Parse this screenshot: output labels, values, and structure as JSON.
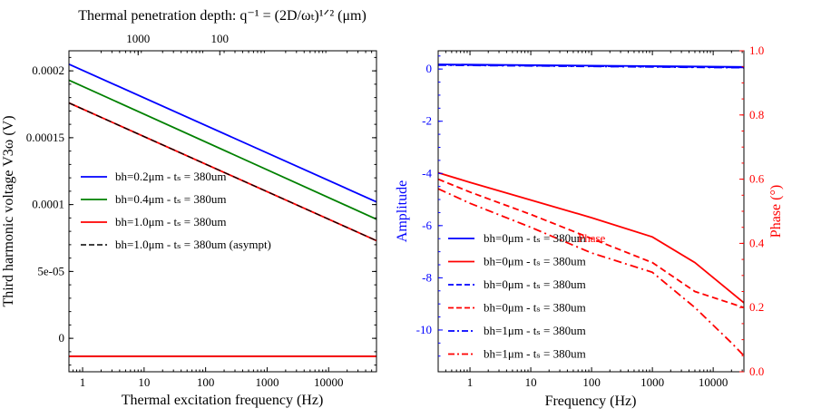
{
  "chart_data": [
    {
      "type": "line",
      "title": "Thermal penetration depth: q⁻¹ = (2D/ωₜ)¹ᐟ² (μm)",
      "xlabel": "Thermal excitation frequency (Hz)",
      "ylabel": "Third harmonic voltage V3ω (V)",
      "xscale": "log",
      "xlim": [
        0.6,
        60000
      ],
      "ylim": [
        -2.5e-05,
        0.000215
      ],
      "xticks": [
        1,
        10,
        100,
        1000,
        10000
      ],
      "xtick_labels": [
        "1",
        "10",
        "100",
        "1000",
        "10000"
      ],
      "yticks": [
        0,
        5e-05,
        0.0001,
        0.00015,
        0.0002
      ],
      "ytick_labels": [
        "0",
        "5e-05",
        "0.0001",
        "0.00015",
        "0.0002"
      ],
      "top_axis_ticks": [
        "1000",
        "100"
      ],
      "top_axis_tick_freqs": [
        8,
        170
      ],
      "legend_position": "center-left",
      "series": [
        {
          "name": "bh=0.2μm - tₛ = 380um",
          "color": "#0000ff",
          "dash": "solid",
          "x": [
            0.6,
            60000
          ],
          "y": [
            0.000205,
            0.000102
          ]
        },
        {
          "name": "bh=0.4μm - tₛ = 380um",
          "color": "#008000",
          "dash": "solid",
          "x": [
            0.6,
            60000
          ],
          "y": [
            0.000193,
            8.9e-05
          ]
        },
        {
          "name": "bh=1.0μm - tₛ = 380um",
          "color": "#ff0000",
          "dash": "solid",
          "x": [
            0.6,
            60000
          ],
          "y": [
            0.000176,
            7.3e-05
          ]
        },
        {
          "name": "bh=1.0μm -  tₛ = 380um (asympt)",
          "color": "#000000",
          "dash": "dashed",
          "x": [
            0.6,
            60000
          ],
          "y": [
            0.000176,
            7.3e-05
          ]
        }
      ],
      "extra_lines": [
        {
          "color": "#000000",
          "x": [
            0.6,
            60000
          ],
          "y": [
            -1.35e-05,
            -1.35e-05
          ]
        },
        {
          "color": "#ff0000",
          "x": [
            0.6,
            60000
          ],
          "y": [
            -1.35e-05,
            -1.35e-05
          ]
        }
      ]
    },
    {
      "type": "line",
      "xlabel": "Frequency (Hz)",
      "ylabel_left": "Amplitude",
      "ylabel_right": "Phase (°)",
      "xscale": "log",
      "xlim": [
        0.3,
        32000
      ],
      "ylim_left": [
        -11.6,
        0.7
      ],
      "ylim_right": [
        0.0,
        1.0
      ],
      "left_color": "#0000ff",
      "right_color": "#ff0000",
      "xticks": [
        1,
        10,
        100,
        1000,
        10000
      ],
      "xtick_labels": [
        "1",
        "10",
        "100",
        "1000",
        "10000"
      ],
      "yticks_left": [
        0,
        -2,
        -4,
        -6,
        -8,
        -10
      ],
      "ytick_labels_left": [
        "0",
        "-2",
        "-4",
        "-6",
        "-8",
        "-10"
      ],
      "yticks_right": [
        0.0,
        0.2,
        0.4,
        0.6,
        0.8,
        1.0
      ],
      "ytick_labels_right": [
        "0.0",
        "0.2",
        "0.4",
        "0.6",
        "0.8",
        "1.0"
      ],
      "legend_position": "lower-left",
      "legend_overlay_text": "Phase",
      "series": [
        {
          "name": "bh=0μm - tₛ = 380um",
          "axis": "left",
          "color": "#0000ff",
          "dash": "solid",
          "x": [
            0.3,
            32000
          ],
          "y": [
            0.18,
            0.08
          ]
        },
        {
          "name": "bh=0μm - tₛ = 380um",
          "axis": "right",
          "color": "#ff0000",
          "dash": "solid",
          "x": [
            0.3,
            1,
            10,
            100,
            1000,
            5000,
            32000
          ],
          "y": [
            0.62,
            0.59,
            0.535,
            0.48,
            0.42,
            0.34,
            0.215
          ]
        },
        {
          "name": "bh=0μm - tₛ = 380um",
          "axis": "left",
          "color": "#0000ff",
          "dash": "dashed",
          "x": [
            0.3,
            32000
          ],
          "y": [
            0.16,
            0.06
          ]
        },
        {
          "name": "bh=0μm - tₛ = 380um",
          "axis": "right",
          "color": "#ff0000",
          "dash": "dashed",
          "x": [
            0.3,
            1,
            10,
            100,
            1000,
            5000,
            32000
          ],
          "y": [
            0.6,
            0.56,
            0.49,
            0.415,
            0.34,
            0.25,
            0.2
          ]
        },
        {
          "name": "bh=1μm - tₛ = 380um",
          "axis": "left",
          "color": "#0000ff",
          "dash": "dashdot",
          "x": [
            0.3,
            32000
          ],
          "y": [
            0.15,
            0.05
          ]
        },
        {
          "name": "bh=1μm - tₛ = 380um",
          "axis": "right",
          "color": "#ff0000",
          "dash": "dashdot",
          "x": [
            0.3,
            1,
            10,
            100,
            1000,
            5000,
            20000,
            32000
          ],
          "y": [
            0.57,
            0.525,
            0.45,
            0.37,
            0.31,
            0.2,
            0.09,
            0.05
          ]
        }
      ]
    }
  ]
}
